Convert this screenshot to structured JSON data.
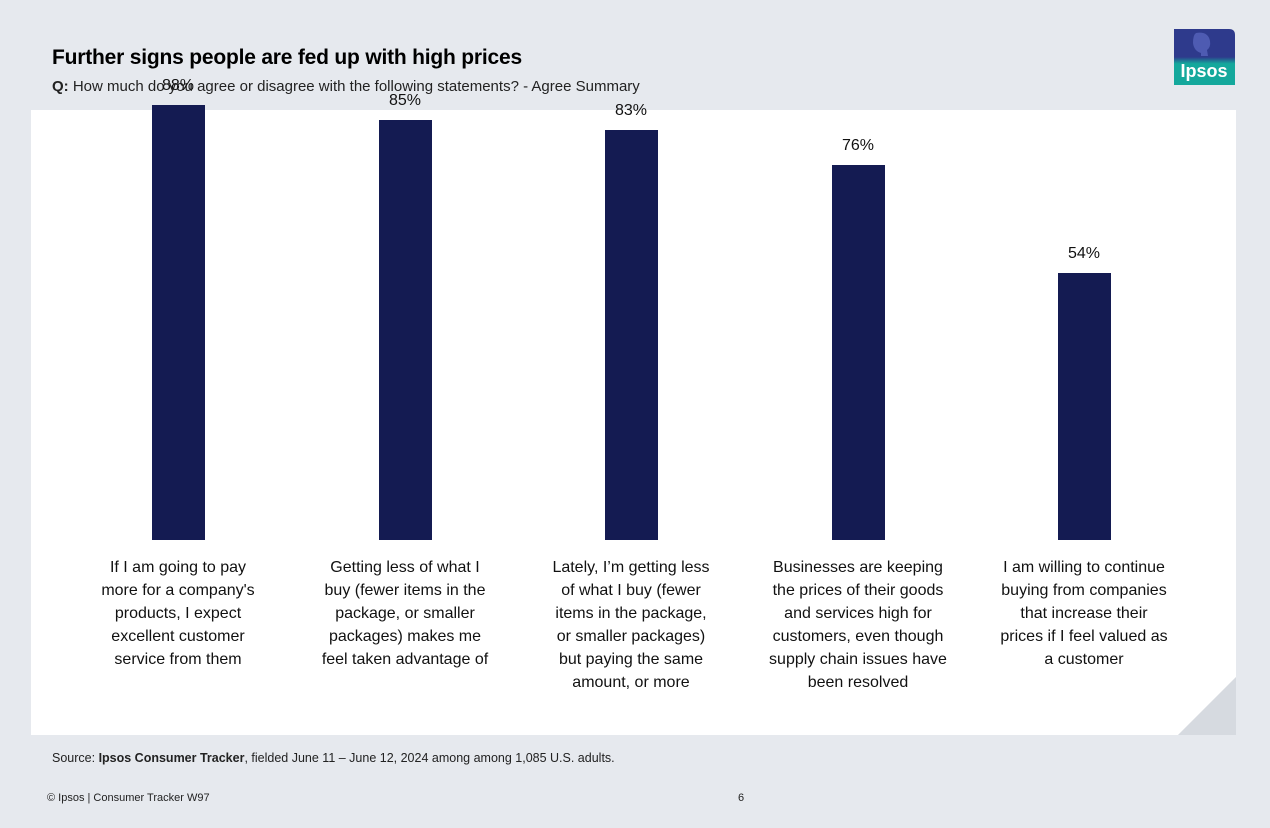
{
  "header": {
    "title": "Further signs people are fed up with high prices",
    "question_prefix": "Q:",
    "question": " How much do you agree or disagree with the following statements? - Agree Summary"
  },
  "logo": {
    "text": "Ipsos",
    "colors": {
      "top": "#2e3a8c",
      "bottom": "#14a89c"
    }
  },
  "chart_data": {
    "type": "bar",
    "categories": [
      "If I am going to pay more for a company's products, I expect excellent customer service from them",
      "Getting less of what I buy (fewer items in the package, or smaller packages) makes me feel taken advantage of",
      "Lately, I'm getting less of what I buy (fewer items in the package, or smaller packages) but paying the same amount, or more",
      "Businesses are keeping the prices of their goods and services high for customers, even though supply chain issues have been resolved",
      "I am willing to continue buying from companies that increase their prices if I feel valued as a customer"
    ],
    "category_lines": [
      [
        "If I am going to pay",
        "more for a company's",
        "products, I expect",
        "excellent customer",
        "service from them"
      ],
      [
        "Getting less of what I",
        "buy (fewer items in the",
        "package, or smaller",
        "packages) makes me",
        "feel taken advantage of"
      ],
      [
        "Lately, I’m getting less",
        "of what I buy (fewer",
        "items in the package,",
        "or smaller packages)",
        "but paying the same",
        "amount, or more"
      ],
      [
        "Businesses are keeping",
        "the prices of their goods",
        "and services high for",
        "customers, even though",
        "supply chain issues have",
        "been resolved"
      ],
      [
        "I am willing to continue",
        "buying from companies",
        "that increase their",
        "prices if I feel valued as",
        "a customer"
      ]
    ],
    "values": [
      88,
      85,
      83,
      76,
      54
    ],
    "value_labels": [
      "88%",
      "85%",
      "83%",
      "76%",
      "54%"
    ],
    "ylim": [
      0,
      100
    ],
    "bar_color": "#141b52",
    "grid": false,
    "legend": "none"
  },
  "source": {
    "prefix": "Source: ",
    "name": "Ipsos Consumer Tracker",
    "detail": ", fielded June 11 – June 12, 2024 among among 1,085 U.S. adults."
  },
  "footer": {
    "copyright": "© Ipsos | Consumer Tracker W97",
    "page": "6"
  }
}
